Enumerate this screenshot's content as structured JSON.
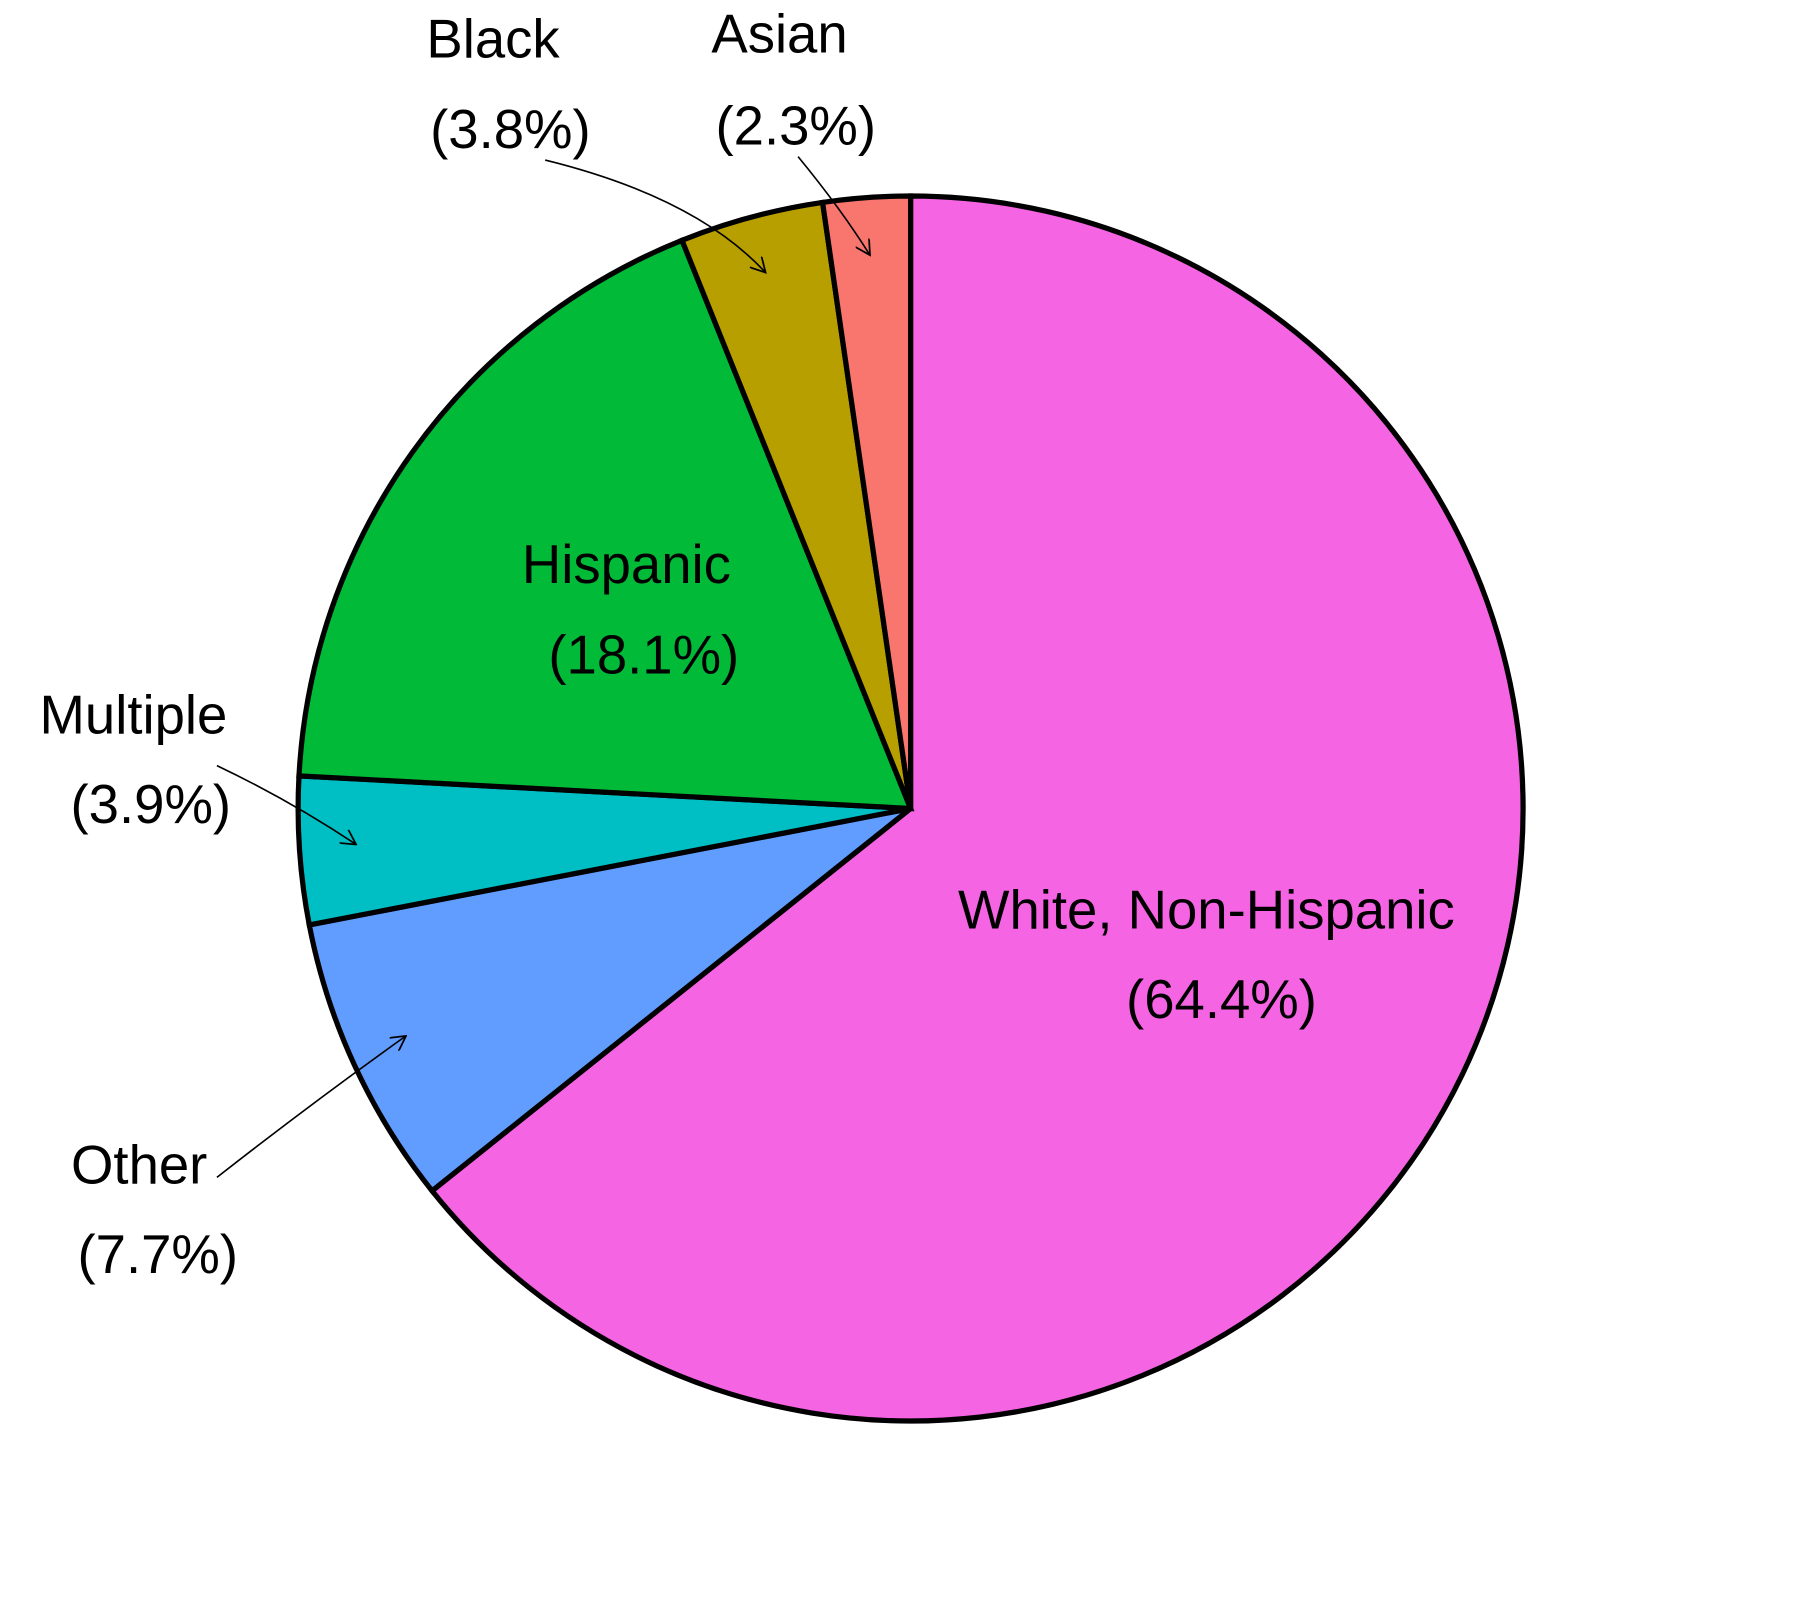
{
  "chart_data": {
    "type": "pie",
    "categories": [
      "White, Non-Hispanic",
      "Other",
      "Multiple",
      "Hispanic",
      "Black",
      "Asian"
    ],
    "values": [
      64.4,
      7.7,
      3.9,
      18.1,
      3.8,
      2.3
    ],
    "value_labels": [
      "(64.4%)",
      "(7.7%)",
      "(3.9%)",
      "(18.1%)",
      "(3.8%)",
      "(2.3%)"
    ],
    "colors": [
      "#f564e3",
      "#619cff",
      "#00bfc4",
      "#00ba38",
      "#b79f00",
      "#f8766d"
    ]
  }
}
